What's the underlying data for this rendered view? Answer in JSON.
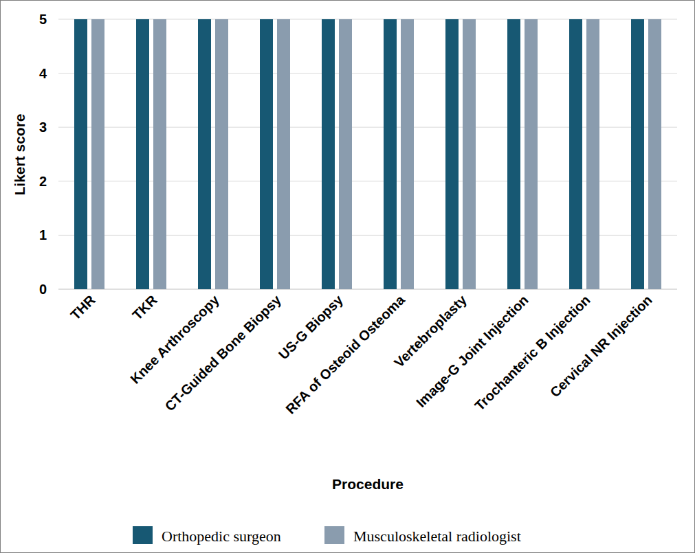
{
  "chart_data": {
    "type": "bar",
    "categories": [
      "THR",
      "TKR",
      "Knee Arthroscopy",
      "CT-Guided Bone Biopsy",
      "US-G Biopsy",
      "RFA of Osteoid Osteoma",
      "Vertebroplasty",
      "Image-G Joint Injection",
      "Trochanteric B Injection",
      "Cervical NR Injection"
    ],
    "series": [
      {
        "name": "Orthopedic surgeon",
        "color": "#175873",
        "values": [
          5,
          5,
          5,
          5,
          5,
          5,
          5,
          5,
          5,
          5
        ]
      },
      {
        "name": "Musculoskeletal radiologist",
        "color": "#8a9cae",
        "values": [
          5,
          5,
          5,
          5,
          5,
          5,
          5,
          5,
          5,
          5
        ]
      }
    ],
    "x_label": "Procedure",
    "y_label": "Likert score",
    "ylim": [
      0,
      5
    ],
    "yticks": [
      0,
      1,
      2,
      3,
      4,
      5
    ],
    "grid": true,
    "legend": "bottom"
  }
}
